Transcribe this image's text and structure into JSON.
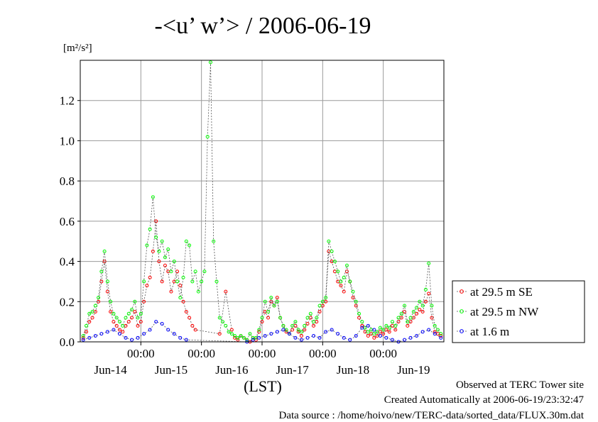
{
  "chart_data": {
    "type": "line",
    "title": "-<u’ w’> / 2006-06-19",
    "ylabel": "[m²/s²]",
    "xlabel": "(LST)",
    "ylim": [
      0,
      1.4
    ],
    "yticks": [
      "0.0",
      "0.2",
      "0.4",
      "0.6",
      "0.8",
      "1.0",
      "1.2"
    ],
    "xlim": [
      0,
      6
    ],
    "x_unit": "days from Jun-14 00:00 (LST)",
    "midnight_labels": [
      "00:00",
      "00:00",
      "00:00",
      "00:00",
      "00:00"
    ],
    "day_labels": [
      "Jun-14",
      "Jun-15",
      "Jun-16",
      "Jun-17",
      "Jun-18",
      "Jun-19"
    ],
    "grid": true,
    "legend_position": "right",
    "series": [
      {
        "name": "at 29.5 m SE",
        "color": "#ff0000",
        "x": [
          0.05,
          0.1,
          0.15,
          0.2,
          0.25,
          0.3,
          0.35,
          0.4,
          0.45,
          0.5,
          0.55,
          0.6,
          0.65,
          0.7,
          0.75,
          0.8,
          0.85,
          0.9,
          0.95,
          1.0,
          1.05,
          1.1,
          1.15,
          1.2,
          1.25,
          1.3,
          1.35,
          1.4,
          1.45,
          1.5,
          1.55,
          1.6,
          1.65,
          1.7,
          1.75,
          1.8,
          1.85,
          1.9,
          2.3,
          2.4,
          2.5,
          2.55,
          2.6,
          2.65,
          2.7,
          2.75,
          2.8,
          2.85,
          2.9,
          2.95,
          3.0,
          3.05,
          3.1,
          3.15,
          3.2,
          3.25,
          3.3,
          3.35,
          3.4,
          3.45,
          3.5,
          3.55,
          3.6,
          3.65,
          3.7,
          3.75,
          3.8,
          3.85,
          3.9,
          3.95,
          4.0,
          4.05,
          4.1,
          4.15,
          4.2,
          4.25,
          4.3,
          4.35,
          4.4,
          4.45,
          4.5,
          4.55,
          4.6,
          4.65,
          4.7,
          4.75,
          4.8,
          4.85,
          4.9,
          4.95,
          5.0,
          5.05,
          5.1,
          5.15,
          5.2,
          5.25,
          5.3,
          5.35,
          5.4,
          5.45,
          5.5,
          5.55,
          5.6,
          5.65,
          5.7,
          5.75,
          5.8,
          5.85,
          5.9,
          5.95
        ],
        "y": [
          0.02,
          0.05,
          0.1,
          0.12,
          0.15,
          0.2,
          0.3,
          0.4,
          0.25,
          0.15,
          0.1,
          0.08,
          0.06,
          0.05,
          0.08,
          0.1,
          0.12,
          0.15,
          0.08,
          0.1,
          0.2,
          0.28,
          0.32,
          0.45,
          0.6,
          0.4,
          0.3,
          0.38,
          0.35,
          0.25,
          0.3,
          0.35,
          0.28,
          0.2,
          0.15,
          0.12,
          0.08,
          0.06,
          0.04,
          0.25,
          0.06,
          0.02,
          0.01,
          0.03,
          0.02,
          0.01,
          0.0,
          0.02,
          0.01,
          0.05,
          0.1,
          0.15,
          0.12,
          0.2,
          0.18,
          0.22,
          0.12,
          0.08,
          0.05,
          0.04,
          0.06,
          0.08,
          0.05,
          0.03,
          0.06,
          0.09,
          0.12,
          0.08,
          0.1,
          0.15,
          0.18,
          0.2,
          0.45,
          0.4,
          0.35,
          0.3,
          0.28,
          0.25,
          0.35,
          0.3,
          0.22,
          0.18,
          0.12,
          0.08,
          0.05,
          0.03,
          0.04,
          0.02,
          0.03,
          0.05,
          0.04,
          0.06,
          0.05,
          0.08,
          0.06,
          0.1,
          0.12,
          0.15,
          0.08,
          0.1,
          0.12,
          0.14,
          0.16,
          0.15,
          0.2,
          0.24,
          0.12,
          0.05,
          0.04,
          0.03
        ]
      },
      {
        "name": "at 29.5 m NW",
        "color": "#00ff00",
        "x": [
          0.05,
          0.1,
          0.15,
          0.2,
          0.25,
          0.3,
          0.35,
          0.4,
          0.45,
          0.5,
          0.55,
          0.6,
          0.65,
          0.7,
          0.75,
          0.8,
          0.85,
          0.9,
          0.95,
          1.0,
          1.05,
          1.1,
          1.15,
          1.2,
          1.25,
          1.3,
          1.35,
          1.4,
          1.45,
          1.5,
          1.55,
          1.6,
          1.65,
          1.7,
          1.75,
          1.8,
          1.85,
          1.9,
          1.95,
          2.0,
          2.05,
          2.1,
          2.15,
          2.2,
          2.25,
          2.3,
          2.35,
          2.4,
          2.45,
          2.5,
          2.55,
          2.6,
          2.65,
          2.7,
          2.75,
          2.8,
          2.85,
          2.9,
          2.95,
          3.0,
          3.05,
          3.1,
          3.15,
          3.2,
          3.25,
          3.3,
          3.35,
          3.4,
          3.45,
          3.5,
          3.55,
          3.6,
          3.65,
          3.7,
          3.75,
          3.8,
          3.85,
          3.9,
          3.95,
          4.0,
          4.05,
          4.1,
          4.15,
          4.2,
          4.25,
          4.3,
          4.35,
          4.4,
          4.45,
          4.5,
          4.55,
          4.6,
          4.65,
          4.7,
          4.75,
          4.8,
          4.85,
          4.9,
          4.95,
          5.0,
          5.05,
          5.1,
          5.15,
          5.2,
          5.25,
          5.3,
          5.35,
          5.4,
          5.45,
          5.5,
          5.55,
          5.6,
          5.65,
          5.7,
          5.75,
          5.8,
          5.85,
          5.9,
          5.95
        ],
        "y": [
          0.03,
          0.08,
          0.14,
          0.15,
          0.18,
          0.22,
          0.35,
          0.45,
          0.3,
          0.2,
          0.14,
          0.12,
          0.1,
          0.08,
          0.12,
          0.14,
          0.16,
          0.2,
          0.12,
          0.14,
          0.3,
          0.48,
          0.56,
          0.72,
          0.52,
          0.45,
          0.5,
          0.42,
          0.46,
          0.35,
          0.4,
          0.3,
          0.22,
          0.32,
          0.5,
          0.48,
          0.3,
          0.35,
          0.25,
          0.3,
          0.35,
          1.02,
          1.39,
          0.5,
          0.3,
          0.12,
          0.1,
          0.08,
          0.05,
          0.04,
          0.03,
          0.02,
          0.03,
          0.02,
          0.01,
          0.04,
          0.02,
          0.02,
          0.06,
          0.12,
          0.2,
          0.15,
          0.22,
          0.18,
          0.2,
          0.12,
          0.08,
          0.06,
          0.04,
          0.08,
          0.1,
          0.06,
          0.05,
          0.08,
          0.12,
          0.14,
          0.1,
          0.12,
          0.18,
          0.2,
          0.22,
          0.5,
          0.45,
          0.4,
          0.35,
          0.3,
          0.32,
          0.38,
          0.3,
          0.25,
          0.2,
          0.14,
          0.1,
          0.07,
          0.05,
          0.06,
          0.04,
          0.05,
          0.07,
          0.06,
          0.08,
          0.07,
          0.1,
          0.08,
          0.12,
          0.14,
          0.18,
          0.1,
          0.12,
          0.15,
          0.17,
          0.2,
          0.18,
          0.26,
          0.39,
          0.18,
          0.08,
          0.06,
          0.04
        ]
      },
      {
        "name": "at 1.6 m",
        "color": "#0000ff",
        "x": [
          0.05,
          0.15,
          0.25,
          0.35,
          0.45,
          0.55,
          0.65,
          0.75,
          0.85,
          0.95,
          1.05,
          1.15,
          1.25,
          1.35,
          1.45,
          1.55,
          1.65,
          1.75,
          2.75,
          2.85,
          2.95,
          3.05,
          3.15,
          3.25,
          3.35,
          3.45,
          3.55,
          3.65,
          3.75,
          3.85,
          3.95,
          4.05,
          4.15,
          4.25,
          4.35,
          4.45,
          4.55,
          4.65,
          4.75,
          4.85,
          4.95,
          5.05,
          5.15,
          5.25,
          5.35,
          5.45,
          5.55,
          5.65,
          5.75,
          5.85,
          5.95
        ],
        "y": [
          0.01,
          0.02,
          0.03,
          0.04,
          0.05,
          0.06,
          0.04,
          0.02,
          0.01,
          0.02,
          0.04,
          0.06,
          0.1,
          0.09,
          0.06,
          0.04,
          0.02,
          0.01,
          0.0,
          0.01,
          0.02,
          0.03,
          0.04,
          0.05,
          0.06,
          0.04,
          0.02,
          0.01,
          0.02,
          0.03,
          0.02,
          0.05,
          0.06,
          0.04,
          0.02,
          0.01,
          0.03,
          0.07,
          0.08,
          0.06,
          0.03,
          0.02,
          0.01,
          0.0,
          0.01,
          0.02,
          0.03,
          0.05,
          0.06,
          0.04,
          0.02
        ]
      }
    ]
  },
  "credits": {
    "observed": "Observed at TERC Tower site",
    "created": "Created Automatically at 2006-06-19/23:32:47",
    "source": "Data source : /home/hoivo/new/TERC-data/sorted_data/FLUX.30m.dat"
  }
}
